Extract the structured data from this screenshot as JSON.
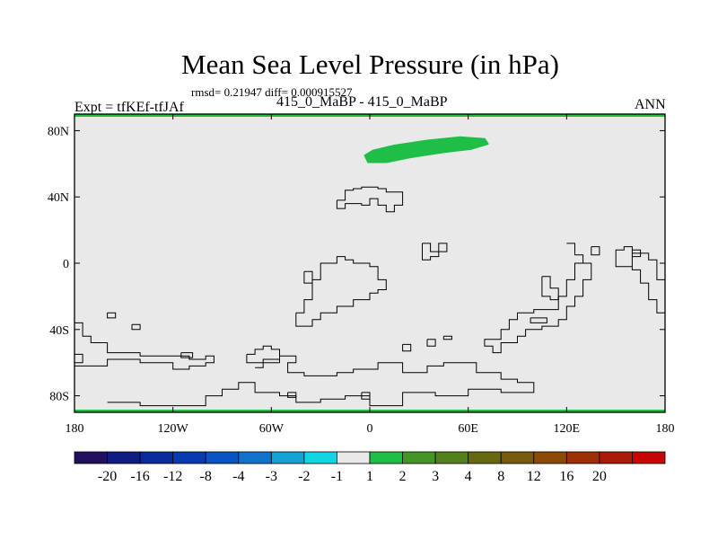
{
  "title": "Mean Sea Level Pressure (in hPa)",
  "stats_line": "rmsd= 0.21947 diff= 0.000915527",
  "left_label": "Expt = tfKEf-tfJAf",
  "center_label": "415_0_MaBP - 415_0_MaBP",
  "right_label": "ANN",
  "map": {
    "projection": "cylindrical-equidistant",
    "lon_range": [
      -180,
      180
    ],
    "lat_range": [
      -90,
      90
    ],
    "background_color": "#e9e9e9",
    "outline_color": "#000000",
    "boundary_color": "#1ebe46",
    "y_ticks": [
      {
        "value": 80,
        "label": "80N"
      },
      {
        "value": 40,
        "label": "40N"
      },
      {
        "value": 0,
        "label": "0"
      },
      {
        "value": -40,
        "label": "40S"
      },
      {
        "value": -80,
        "label": "80S"
      }
    ],
    "x_ticks": [
      {
        "value": -180,
        "label": "180"
      },
      {
        "value": -120,
        "label": "120W"
      },
      {
        "value": -60,
        "label": "60W"
      },
      {
        "value": 0,
        "label": "0"
      },
      {
        "value": 60,
        "label": "60E"
      },
      {
        "value": 120,
        "label": "120E"
      },
      {
        "value": 180,
        "label": "180"
      }
    ],
    "anomaly_region": {
      "color": "#1fbe46",
      "lon_lat": [
        [
          -3,
          65
        ],
        [
          2,
          68
        ],
        [
          15,
          71
        ],
        [
          35,
          74
        ],
        [
          55,
          76
        ],
        [
          70,
          75
        ],
        [
          72,
          72
        ],
        [
          62,
          69
        ],
        [
          45,
          67
        ],
        [
          25,
          64
        ],
        [
          10,
          61
        ],
        [
          -1,
          61
        ]
      ]
    },
    "outlines": [
      [
        [
          -20,
          38
        ],
        [
          -15,
          38
        ],
        [
          -15,
          44
        ],
        [
          -10,
          44
        ],
        [
          -10,
          45
        ],
        [
          -5,
          45
        ],
        [
          -5,
          46
        ],
        [
          5,
          46
        ],
        [
          5,
          45
        ],
        [
          10,
          45
        ],
        [
          10,
          43
        ],
        [
          20,
          43
        ],
        [
          20,
          35
        ],
        [
          15,
          35
        ],
        [
          15,
          31
        ],
        [
          10,
          31
        ],
        [
          10,
          35
        ],
        [
          5,
          35
        ],
        [
          5,
          39
        ],
        [
          0,
          39
        ],
        [
          0,
          35
        ],
        [
          -5,
          35
        ],
        [
          -5,
          36
        ],
        [
          -15,
          36
        ],
        [
          -15,
          33
        ],
        [
          -20,
          33
        ],
        [
          -20,
          38
        ]
      ],
      [
        [
          32,
          12
        ],
        [
          37,
          12
        ],
        [
          37,
          7
        ],
        [
          42,
          7
        ],
        [
          42,
          12
        ],
        [
          47,
          12
        ],
        [
          47,
          7
        ],
        [
          42,
          7
        ],
        [
          42,
          4
        ],
        [
          37,
          4
        ],
        [
          37,
          2
        ],
        [
          32,
          2
        ],
        [
          32,
          12
        ]
      ],
      [
        [
          -45,
          -30
        ],
        [
          -40,
          -30
        ],
        [
          -40,
          -22
        ],
        [
          -35,
          -22
        ],
        [
          -35,
          -10
        ],
        [
          -30,
          -10
        ],
        [
          -30,
          0
        ],
        [
          -20,
          0
        ],
        [
          -20,
          4
        ],
        [
          -15,
          4
        ],
        [
          -15,
          2
        ],
        [
          -10,
          2
        ],
        [
          -10,
          0
        ],
        [
          0,
          0
        ],
        [
          0,
          -2
        ],
        [
          5,
          -2
        ],
        [
          5,
          -10
        ],
        [
          10,
          -10
        ],
        [
          10,
          -16
        ],
        [
          5,
          -16
        ],
        [
          5,
          -18
        ],
        [
          0,
          -18
        ],
        [
          0,
          -22
        ],
        [
          -10,
          -22
        ],
        [
          -10,
          -26
        ],
        [
          -20,
          -26
        ],
        [
          -20,
          -30
        ],
        [
          -30,
          -30
        ],
        [
          -30,
          -34
        ],
        [
          -35,
          -34
        ],
        [
          -35,
          -38
        ],
        [
          -45,
          -38
        ],
        [
          -45,
          -30
        ]
      ],
      [
        [
          -40,
          -5
        ],
        [
          -35,
          -5
        ],
        [
          -35,
          -12
        ],
        [
          -40,
          -12
        ],
        [
          -40,
          -5
        ]
      ],
      [
        [
          -180,
          -36
        ],
        [
          -175,
          -36
        ],
        [
          -175,
          -44
        ],
        [
          -170,
          -44
        ],
        [
          -170,
          -48
        ],
        [
          -160,
          -48
        ],
        [
          -160,
          -54
        ],
        [
          -140,
          -54
        ],
        [
          -140,
          -56
        ],
        [
          -110,
          -56
        ],
        [
          -110,
          -58
        ],
        [
          -100,
          -58
        ],
        [
          -100,
          -56
        ],
        [
          -95,
          -56
        ],
        [
          -95,
          -60
        ],
        [
          -100,
          -60
        ],
        [
          -100,
          -62
        ],
        [
          -110,
          -62
        ],
        [
          -110,
          -64
        ],
        [
          -120,
          -64
        ],
        [
          -120,
          -60
        ],
        [
          -140,
          -60
        ],
        [
          -140,
          -58
        ],
        [
          -160,
          -58
        ],
        [
          -160,
          -62
        ],
        [
          -180,
          -62
        ]
      ],
      [
        [
          -160,
          -30
        ],
        [
          -155,
          -30
        ],
        [
          -155,
          -33
        ],
        [
          -160,
          -33
        ],
        [
          -160,
          -30
        ]
      ],
      [
        [
          -145,
          -37
        ],
        [
          -140,
          -37
        ],
        [
          -140,
          -40
        ],
        [
          -145,
          -40
        ],
        [
          -145,
          -37
        ]
      ],
      [
        [
          -115,
          -54
        ],
        [
          -108,
          -54
        ],
        [
          -108,
          -57
        ],
        [
          -115,
          -57
        ],
        [
          -115,
          -54
        ]
      ],
      [
        [
          -70,
          -63
        ],
        [
          -65,
          -63
        ],
        [
          -65,
          -60
        ],
        [
          -55,
          -60
        ],
        [
          -55,
          -56
        ],
        [
          -45,
          -56
        ],
        [
          -45,
          -60
        ],
        [
          -50,
          -60
        ],
        [
          -50,
          -66
        ],
        [
          -40,
          -66
        ],
        [
          -40,
          -68
        ],
        [
          -20,
          -68
        ],
        [
          -20,
          -66
        ],
        [
          -10,
          -66
        ],
        [
          -10,
          -64
        ],
        [
          5,
          -64
        ],
        [
          5,
          -60
        ],
        [
          20,
          -60
        ],
        [
          20,
          -66
        ],
        [
          35,
          -66
        ],
        [
          35,
          -62
        ],
        [
          45,
          -62
        ],
        [
          45,
          -60
        ],
        [
          65,
          -60
        ],
        [
          65,
          -66
        ],
        [
          80,
          -66
        ],
        [
          80,
          -70
        ],
        [
          90,
          -70
        ],
        [
          90,
          -72
        ],
        [
          100,
          -72
        ],
        [
          100,
          -78
        ],
        [
          80,
          -78
        ],
        [
          80,
          -76
        ],
        [
          60,
          -76
        ],
        [
          60,
          -80
        ],
        [
          40,
          -80
        ],
        [
          40,
          -78
        ],
        [
          20,
          -78
        ],
        [
          20,
          -86
        ],
        [
          0,
          -86
        ],
        [
          0,
          -80
        ],
        [
          -15,
          -80
        ],
        [
          -15,
          -82
        ],
        [
          -30,
          -82
        ],
        [
          -30,
          -84
        ],
        [
          -45,
          -84
        ],
        [
          -45,
          -80
        ],
        [
          -55,
          -80
        ],
        [
          -55,
          -78
        ],
        [
          -70,
          -78
        ],
        [
          -70,
          -72
        ],
        [
          -80,
          -72
        ],
        [
          -80,
          -76
        ],
        [
          -90,
          -76
        ],
        [
          -90,
          -80
        ],
        [
          -100,
          -80
        ],
        [
          -100,
          -86
        ],
        [
          -140,
          -86
        ],
        [
          -140,
          -84
        ],
        [
          -160,
          -84
        ]
      ],
      [
        [
          -180,
          -55
        ],
        [
          -175,
          -55
        ],
        [
          -175,
          -60
        ],
        [
          -180,
          -60
        ]
      ],
      [
        [
          -75,
          -55
        ],
        [
          -70,
          -55
        ],
        [
          -70,
          -52
        ],
        [
          -65,
          -52
        ],
        [
          -65,
          -50
        ],
        [
          -60,
          -50
        ],
        [
          -60,
          -52
        ],
        [
          -55,
          -52
        ],
        [
          -55,
          -58
        ],
        [
          -65,
          -58
        ],
        [
          -65,
          -60
        ],
        [
          -75,
          -60
        ],
        [
          -75,
          -55
        ]
      ],
      [
        [
          20,
          -49
        ],
        [
          25,
          -49
        ],
        [
          25,
          -53
        ],
        [
          20,
          -53
        ],
        [
          20,
          -49
        ]
      ],
      [
        [
          -5,
          -78
        ],
        [
          0,
          -78
        ],
        [
          0,
          -82
        ],
        [
          -5,
          -82
        ],
        [
          -5,
          -78
        ]
      ],
      [
        [
          -50,
          -78
        ],
        [
          -45,
          -78
        ],
        [
          -45,
          -81
        ],
        [
          -50,
          -81
        ],
        [
          -50,
          -78
        ]
      ],
      [
        [
          35,
          -46
        ],
        [
          40,
          -46
        ],
        [
          40,
          -50
        ],
        [
          35,
          -50
        ],
        [
          35,
          -46
        ]
      ],
      [
        [
          45,
          -44
        ],
        [
          50,
          -44
        ],
        [
          50,
          -46
        ],
        [
          45,
          -46
        ],
        [
          45,
          -44
        ]
      ],
      [
        [
          120,
          12
        ],
        [
          125,
          12
        ],
        [
          125,
          5
        ],
        [
          130,
          5
        ],
        [
          130,
          0
        ],
        [
          125,
          0
        ],
        [
          125,
          -10
        ],
        [
          120,
          -10
        ],
        [
          120,
          -20
        ],
        [
          115,
          -20
        ],
        [
          115,
          -28
        ],
        [
          100,
          -28
        ],
        [
          100,
          -30
        ],
        [
          90,
          -30
        ],
        [
          90,
          -34
        ],
        [
          85,
          -34
        ],
        [
          85,
          -40
        ],
        [
          80,
          -40
        ],
        [
          80,
          -46
        ],
        [
          70,
          -46
        ],
        [
          70,
          -50
        ],
        [
          75,
          -50
        ],
        [
          75,
          -54
        ],
        [
          80,
          -54
        ],
        [
          80,
          -48
        ],
        [
          90,
          -48
        ],
        [
          90,
          -44
        ],
        [
          95,
          -44
        ],
        [
          95,
          -40
        ],
        [
          105,
          -40
        ],
        [
          105,
          -38
        ],
        [
          115,
          -38
        ],
        [
          115,
          -34
        ],
        [
          120,
          -34
        ],
        [
          120,
          -26
        ],
        [
          125,
          -26
        ],
        [
          125,
          -20
        ],
        [
          130,
          -20
        ],
        [
          130,
          -10
        ],
        [
          135,
          -10
        ],
        [
          135,
          0
        ],
        [
          130,
          0
        ],
        [
          130,
          5
        ],
        [
          125,
          5
        ],
        [
          125,
          12
        ],
        [
          120,
          12
        ]
      ],
      [
        [
          135,
          10
        ],
        [
          140,
          10
        ],
        [
          140,
          5
        ],
        [
          135,
          5
        ],
        [
          135,
          10
        ]
      ],
      [
        [
          105,
          -8
        ],
        [
          110,
          -8
        ],
        [
          110,
          -15
        ],
        [
          115,
          -15
        ],
        [
          115,
          -22
        ],
        [
          110,
          -22
        ],
        [
          110,
          -20
        ],
        [
          105,
          -20
        ],
        [
          105,
          -8
        ]
      ],
      [
        [
          98,
          -33
        ],
        [
          108,
          -33
        ],
        [
          108,
          -36
        ],
        [
          98,
          -36
        ],
        [
          98,
          -33
        ]
      ],
      [
        [
          180,
          -30
        ],
        [
          175,
          -30
        ],
        [
          175,
          -22
        ],
        [
          170,
          -22
        ],
        [
          170,
          -12
        ],
        [
          165,
          -12
        ],
        [
          165,
          -4
        ],
        [
          160,
          -4
        ],
        [
          160,
          4
        ],
        [
          165,
          4
        ],
        [
          165,
          8
        ],
        [
          160,
          8
        ],
        [
          160,
          -2
        ],
        [
          150,
          -2
        ],
        [
          150,
          8
        ],
        [
          155,
          8
        ],
        [
          155,
          10
        ],
        [
          160,
          10
        ],
        [
          160,
          6
        ],
        [
          170,
          6
        ],
        [
          170,
          2
        ],
        [
          175,
          2
        ],
        [
          175,
          -10
        ],
        [
          180,
          -10
        ]
      ]
    ]
  },
  "colorbar": {
    "colors": [
      "#20105e",
      "#101c80",
      "#0a2a9c",
      "#0a3ab0",
      "#0a54c2",
      "#1072ca",
      "#12a2d4",
      "#10d6e4",
      "#e9e9e9",
      "#1fbe46",
      "#459428",
      "#52801c",
      "#666812",
      "#785a0e",
      "#8c4a08",
      "#9e3008",
      "#ae1808",
      "#c60606"
    ],
    "labels": [
      "-20",
      "-16",
      "-12",
      "-8",
      "-4",
      "-3",
      "-2",
      "-1",
      "1",
      "2",
      "3",
      "4",
      "8",
      "12",
      "16",
      "20"
    ]
  }
}
